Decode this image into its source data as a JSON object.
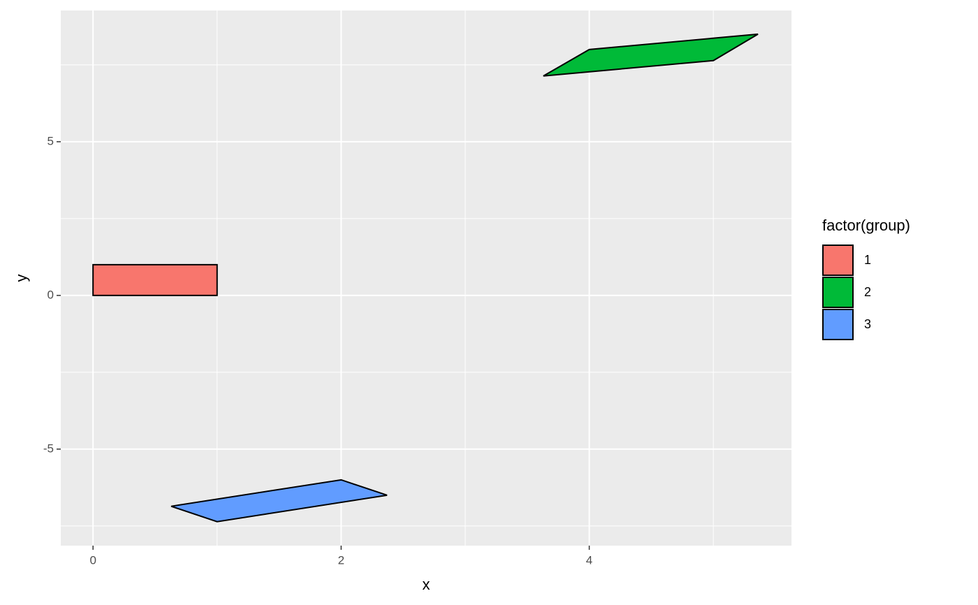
{
  "chart_data": {
    "type": "polygon",
    "x_label": "x",
    "y_label": "y",
    "legend_title": "factor(group)",
    "legend": "right",
    "xlim": [
      -0.26,
      5.63
    ],
    "ylim": [
      -8.14,
      9.27
    ],
    "xticks": [
      0,
      2,
      4
    ],
    "yticks": [
      -5,
      0,
      5
    ],
    "xminor": [
      1,
      3,
      5
    ],
    "yminor": [
      -7.5,
      -2.5,
      2.5,
      7.5
    ],
    "grid": true,
    "series": [
      {
        "name": "1",
        "color": "#f8766d",
        "x": [
          0,
          1,
          1,
          0
        ],
        "y": [
          0,
          0,
          1,
          1
        ]
      },
      {
        "name": "2",
        "color": "#00ba38",
        "x": [
          3.63,
          4,
          5.36,
          5
        ],
        "y": [
          7.14,
          8.0,
          8.5,
          7.64
        ]
      },
      {
        "name": "3",
        "color": "#619cff",
        "x": [
          0.63,
          1.0,
          2.37,
          2.0
        ],
        "y": [
          -6.86,
          -7.36,
          -6.5,
          -6.0
        ]
      }
    ]
  }
}
